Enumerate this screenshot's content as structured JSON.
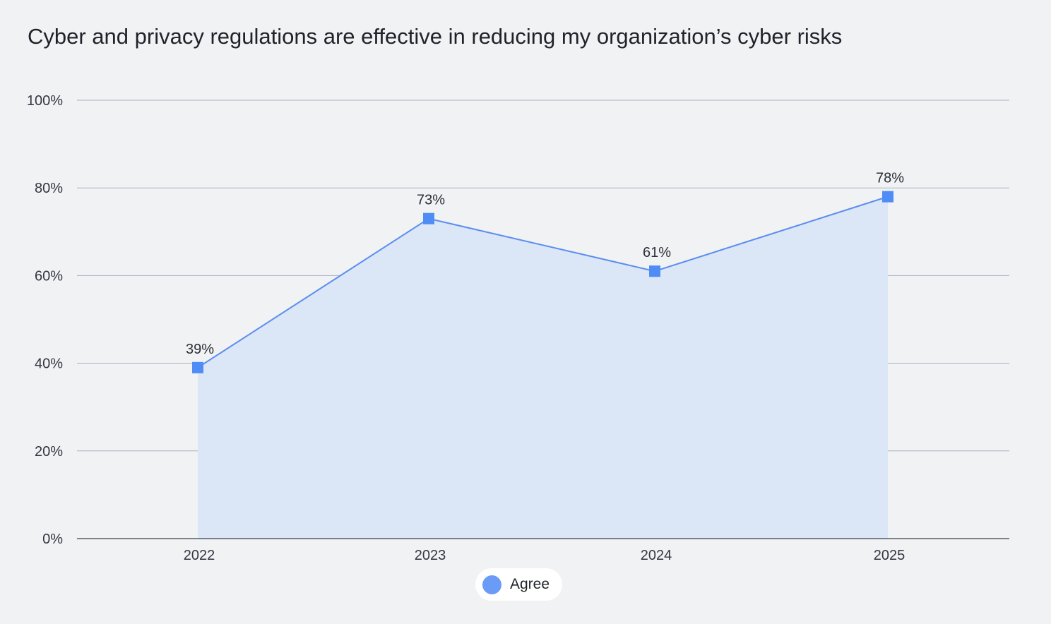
{
  "chart_data": {
    "type": "area",
    "title": "Cyber and privacy regulations are effective in reducing my organization’s cyber risks",
    "categories": [
      "2022",
      "2023",
      "2024",
      "2025"
    ],
    "series": [
      {
        "name": "Agree",
        "values": [
          39,
          73,
          61,
          78
        ],
        "value_labels": [
          "39%",
          "73%",
          "61%",
          "78%"
        ]
      }
    ],
    "ylim": [
      0,
      100
    ],
    "y_ticks": [
      0,
      20,
      40,
      60,
      80,
      100
    ],
    "y_tick_labels": [
      "0%",
      "20%",
      "40%",
      "60%",
      "80%",
      "100%"
    ],
    "grid": true,
    "legend_position": "bottom-center",
    "colors": {
      "line": "#5b8def",
      "marker": "#4f8cf5",
      "fill": "#dbe6f6",
      "grid": "#a9b0c4",
      "axis": "#3a3f4a",
      "legend_swatch": "#6a9cf7"
    }
  }
}
